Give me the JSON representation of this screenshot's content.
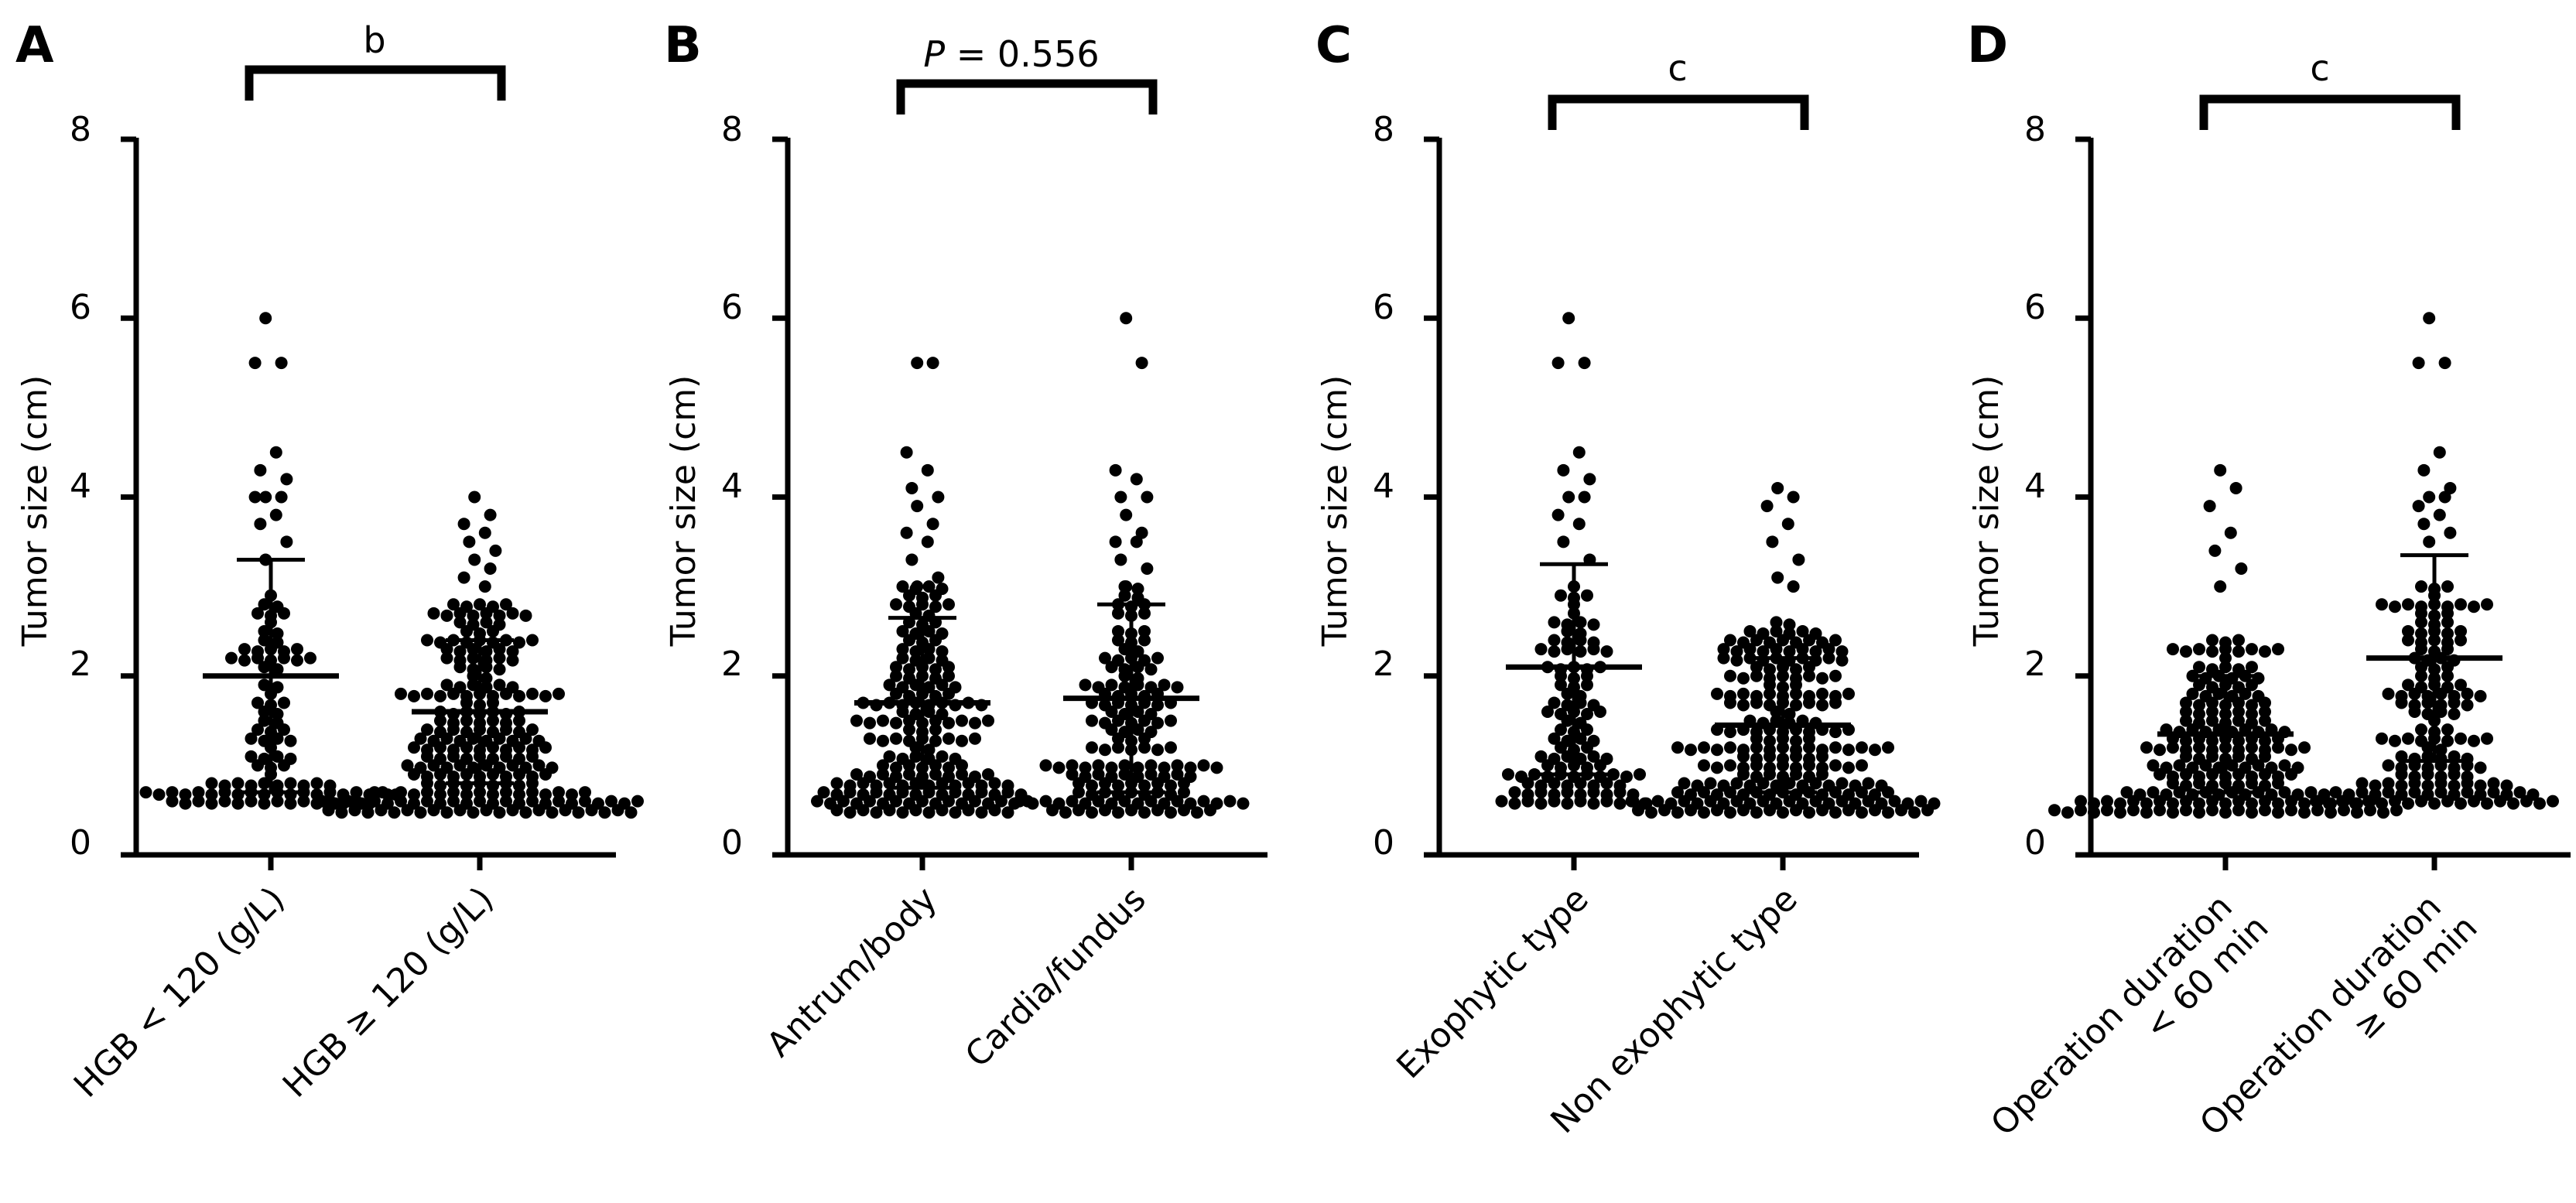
{
  "figure": {
    "colors": {
      "ink": "#000000",
      "background": "#ffffff"
    }
  },
  "chart_data": [
    {
      "type": "scatter",
      "panel": "A",
      "ylabel": "Tumor size (cm)",
      "ylim": [
        0,
        8
      ],
      "yticks": [
        "0",
        "2",
        "4",
        "6",
        "8"
      ],
      "categories": [
        "HGB < 120 (g/L)",
        "HGB ≥ 120 (g/L)"
      ],
      "significance": {
        "text": "b",
        "italic_prefix": ""
      },
      "groups": [
        {
          "name": "HGB < 120 (g/L)",
          "label_lines": [
            "HGB < 120 (g/L)"
          ],
          "mean": 2.0,
          "sd_upper": 3.3,
          "sd_lower": 0.7,
          "n": 110,
          "min": 0.6,
          "max": 6.0,
          "points": [
            6.0,
            5.5,
            5.5,
            4.5,
            4.3,
            4.2,
            4.0,
            4.0,
            4.0,
            3.8,
            3.7,
            3.5,
            3.3
          ]
        },
        {
          "name": "HGB ≥ 120 (g/L)",
          "label_lines": [
            "HGB ≥ 120 (g/L)"
          ],
          "mean": 1.6,
          "sd_upper": 2.4,
          "sd_lower": 0.8,
          "n": 230,
          "min": 0.5,
          "max": 4.0,
          "points": [
            4.0,
            3.8,
            3.7,
            3.6,
            3.5,
            3.4,
            3.3,
            3.2,
            3.1,
            3.0
          ]
        }
      ]
    },
    {
      "type": "scatter",
      "panel": "B",
      "ylabel": "Tumor size (cm)",
      "ylim": [
        0,
        8
      ],
      "yticks": [
        "0",
        "2",
        "4",
        "6",
        "8"
      ],
      "categories": [
        "Antrum/body",
        "Cardia/fundus"
      ],
      "significance": {
        "text": " = 0.556",
        "italic_prefix": "P"
      },
      "groups": [
        {
          "name": "Antrum/body",
          "label_lines": [
            "Antrum/body"
          ],
          "mean": 1.7,
          "sd_upper": 2.65,
          "sd_lower": 0.75,
          "n": 190,
          "min": 0.5,
          "max": 5.5,
          "points": [
            5.5,
            5.5,
            4.5,
            4.3,
            4.1,
            4.0,
            3.9,
            3.7,
            3.6,
            3.5,
            3.3,
            3.1,
            3.0
          ]
        },
        {
          "name": "Cardia/fundus",
          "label_lines": [
            "Cardia/fundus"
          ],
          "mean": 1.75,
          "sd_upper": 2.8,
          "sd_lower": 0.7,
          "n": 160,
          "min": 0.5,
          "max": 6.0,
          "points": [
            6.0,
            5.5,
            4.3,
            4.2,
            4.0,
            4.0,
            3.8,
            3.6,
            3.5,
            3.5,
            3.3,
            3.2,
            3.0
          ]
        }
      ]
    },
    {
      "type": "scatter",
      "panel": "C",
      "ylabel": "Tumor size (cm)",
      "ylim": [
        0,
        8
      ],
      "yticks": [
        "0",
        "2",
        "4",
        "6",
        "8"
      ],
      "categories": [
        "Exophytic type",
        "Non exophytic type"
      ],
      "significance": {
        "text": "c",
        "italic_prefix": ""
      },
      "groups": [
        {
          "name": "Exophytic type",
          "label_lines": [
            "Exophytic type"
          ],
          "mean": 2.1,
          "sd_upper": 3.25,
          "sd_lower": 0.9,
          "n": 120,
          "min": 0.6,
          "max": 6.0,
          "points": [
            6.0,
            5.5,
            5.5,
            4.5,
            4.3,
            4.2,
            4.0,
            4.0,
            3.8,
            3.7,
            3.5,
            3.3
          ]
        },
        {
          "name": "Non exophytic type",
          "label_lines": [
            "Non exophytic type"
          ],
          "mean": 1.45,
          "sd_upper": 2.2,
          "sd_lower": 0.7,
          "n": 230,
          "min": 0.5,
          "max": 4.1,
          "points": [
            4.1,
            4.0,
            3.9,
            3.7,
            3.5,
            3.3,
            3.1,
            3.0
          ]
        }
      ]
    },
    {
      "type": "scatter",
      "panel": "D",
      "ylabel": "Tumor size (cm)",
      "ylim": [
        0,
        8
      ],
      "yticks": [
        "0",
        "2",
        "4",
        "6",
        "8"
      ],
      "categories": [
        "Operation duration < 60 min",
        "Operation duration ≥ 60 min"
      ],
      "significance": {
        "text": "c",
        "italic_prefix": ""
      },
      "groups": [
        {
          "name": "Operation duration < 60 min",
          "label_lines": [
            "Operation duration",
            "< 60 min"
          ],
          "mean": 1.35,
          "sd_upper": 2.0,
          "sd_lower": 0.7,
          "n": 200,
          "min": 0.5,
          "max": 4.3,
          "points": [
            4.3,
            4.1,
            3.9,
            3.6,
            3.4,
            3.2,
            3.0
          ]
        },
        {
          "name": "Operation duration ≥ 60 min",
          "label_lines": [
            "Operation duration",
            "≥ 60 min"
          ],
          "mean": 2.2,
          "sd_upper": 3.35,
          "sd_lower": 1.05,
          "n": 160,
          "min": 0.6,
          "max": 6.0,
          "points": [
            6.0,
            5.5,
            5.5,
            4.5,
            4.3,
            4.1,
            4.0,
            4.0,
            3.9,
            3.8,
            3.7,
            3.6,
            3.5
          ]
        }
      ]
    }
  ]
}
